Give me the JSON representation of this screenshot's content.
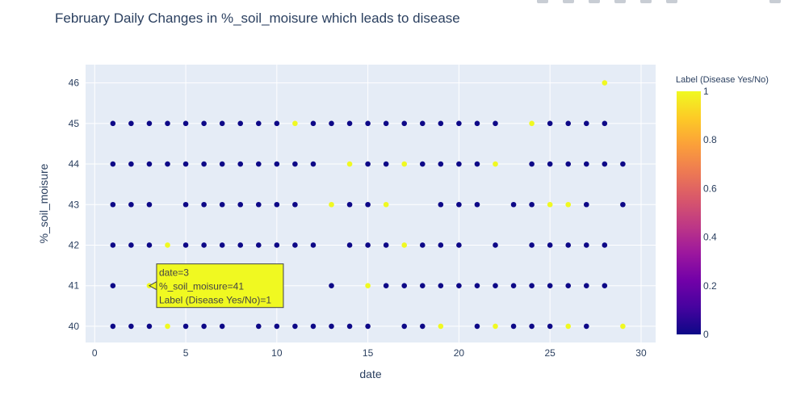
{
  "chart_data": {
    "type": "scatter",
    "title": "February Daily Changes in %_soil_moisure which leads to disease",
    "xlabel": "date",
    "ylabel": "%_soil_moisure",
    "xlim": [
      -0.5,
      30.8
    ],
    "ylim": [
      39.6,
      46.45
    ],
    "xticks": [
      0,
      5,
      10,
      15,
      20,
      25,
      30
    ],
    "yticks": [
      40,
      41,
      42,
      43,
      44,
      45,
      46
    ],
    "grid": true,
    "background": "#e5ecf6",
    "colorscale": [
      "#0d0887",
      "#46039f",
      "#7201a8",
      "#9c179e",
      "#bd3786",
      "#d8576b",
      "#ed7953",
      "#fb9f3a",
      "#fdca26",
      "#f0f921"
    ],
    "colorbar": {
      "title": "Label (Disease Yes/No)",
      "range": [
        0,
        1
      ],
      "ticks": [
        {
          "value": 0,
          "label": "0"
        },
        {
          "value": 0.2,
          "label": "0.2"
        },
        {
          "value": 0.4,
          "label": "0.4"
        },
        {
          "value": 0.6,
          "label": "0.6"
        },
        {
          "value": 0.8,
          "label": "0.8"
        },
        {
          "value": 1,
          "label": "1"
        }
      ]
    },
    "points": [
      [
        1,
        45,
        0
      ],
      [
        2,
        45,
        0
      ],
      [
        3,
        45,
        0
      ],
      [
        4,
        45,
        0
      ],
      [
        5,
        45,
        0
      ],
      [
        6,
        45,
        0
      ],
      [
        7,
        45,
        0
      ],
      [
        8,
        45,
        0
      ],
      [
        9,
        45,
        0
      ],
      [
        10,
        45,
        0
      ],
      [
        11,
        45,
        1
      ],
      [
        12,
        45,
        0
      ],
      [
        13,
        45,
        0
      ],
      [
        14,
        45,
        0
      ],
      [
        15,
        45,
        0
      ],
      [
        16,
        45,
        0
      ],
      [
        17,
        45,
        0
      ],
      [
        18,
        45,
        0
      ],
      [
        19,
        45,
        0
      ],
      [
        20,
        45,
        0
      ],
      [
        21,
        45,
        0
      ],
      [
        22,
        45,
        0
      ],
      [
        24,
        45,
        1
      ],
      [
        25,
        45,
        0
      ],
      [
        26,
        45,
        0
      ],
      [
        27,
        45,
        0
      ],
      [
        28,
        45,
        0
      ],
      [
        28,
        46,
        1
      ],
      [
        1,
        44,
        0
      ],
      [
        2,
        44,
        0
      ],
      [
        3,
        44,
        0
      ],
      [
        4,
        44,
        0
      ],
      [
        5,
        44,
        0
      ],
      [
        6,
        44,
        0
      ],
      [
        7,
        44,
        0
      ],
      [
        8,
        44,
        0
      ],
      [
        9,
        44,
        0
      ],
      [
        10,
        44,
        0
      ],
      [
        11,
        44,
        0
      ],
      [
        12,
        44,
        0
      ],
      [
        14,
        44,
        1
      ],
      [
        15,
        44,
        0
      ],
      [
        16,
        44,
        0
      ],
      [
        17,
        44,
        1
      ],
      [
        18,
        44,
        0
      ],
      [
        19,
        44,
        0
      ],
      [
        20,
        44,
        0
      ],
      [
        21,
        44,
        0
      ],
      [
        22,
        44,
        1
      ],
      [
        24,
        44,
        0
      ],
      [
        25,
        44,
        0
      ],
      [
        26,
        44,
        0
      ],
      [
        27,
        44,
        0
      ],
      [
        28,
        44,
        0
      ],
      [
        29,
        44,
        0
      ],
      [
        1,
        43,
        0
      ],
      [
        2,
        43,
        0
      ],
      [
        3,
        43,
        0
      ],
      [
        5,
        43,
        0
      ],
      [
        6,
        43,
        0
      ],
      [
        7,
        43,
        0
      ],
      [
        8,
        43,
        0
      ],
      [
        9,
        43,
        0
      ],
      [
        10,
        43,
        0
      ],
      [
        11,
        43,
        0
      ],
      [
        13,
        43,
        1
      ],
      [
        14,
        43,
        0
      ],
      [
        15,
        43,
        0
      ],
      [
        16,
        43,
        1
      ],
      [
        19,
        43,
        0
      ],
      [
        20,
        43,
        0
      ],
      [
        21,
        43,
        0
      ],
      [
        23,
        43,
        0
      ],
      [
        24,
        43,
        0
      ],
      [
        25,
        43,
        1
      ],
      [
        26,
        43,
        1
      ],
      [
        27,
        43,
        0
      ],
      [
        29,
        43,
        0
      ],
      [
        1,
        42,
        0
      ],
      [
        2,
        42,
        0
      ],
      [
        3,
        42,
        0
      ],
      [
        4,
        42,
        1
      ],
      [
        5,
        42,
        0
      ],
      [
        6,
        42,
        0
      ],
      [
        7,
        42,
        0
      ],
      [
        8,
        42,
        0
      ],
      [
        9,
        42,
        0
      ],
      [
        10,
        42,
        0
      ],
      [
        11,
        42,
        0
      ],
      [
        12,
        42,
        0
      ],
      [
        14,
        42,
        0
      ],
      [
        15,
        42,
        0
      ],
      [
        16,
        42,
        0
      ],
      [
        17,
        42,
        1
      ],
      [
        18,
        42,
        0
      ],
      [
        19,
        42,
        0
      ],
      [
        20,
        42,
        0
      ],
      [
        22,
        42,
        0
      ],
      [
        24,
        42,
        0
      ],
      [
        25,
        42,
        0
      ],
      [
        26,
        42,
        0
      ],
      [
        27,
        42,
        0
      ],
      [
        28,
        42,
        0
      ],
      [
        1,
        41,
        0
      ],
      [
        3,
        41,
        1
      ],
      [
        13,
        41,
        0
      ],
      [
        15,
        41,
        1
      ],
      [
        16,
        41,
        0
      ],
      [
        17,
        41,
        0
      ],
      [
        18,
        41,
        0
      ],
      [
        19,
        41,
        0
      ],
      [
        20,
        41,
        0
      ],
      [
        21,
        41,
        0
      ],
      [
        22,
        41,
        0
      ],
      [
        23,
        41,
        0
      ],
      [
        24,
        41,
        0
      ],
      [
        25,
        41,
        0
      ],
      [
        26,
        41,
        0
      ],
      [
        27,
        41,
        0
      ],
      [
        28,
        41,
        0
      ],
      [
        1,
        40,
        0
      ],
      [
        2,
        40,
        0
      ],
      [
        3,
        40,
        0
      ],
      [
        4,
        40,
        1
      ],
      [
        5,
        40,
        0
      ],
      [
        6,
        40,
        0
      ],
      [
        7,
        40,
        0
      ],
      [
        9,
        40,
        0
      ],
      [
        10,
        40,
        0
      ],
      [
        11,
        40,
        0
      ],
      [
        12,
        40,
        0
      ],
      [
        13,
        40,
        0
      ],
      [
        14,
        40,
        0
      ],
      [
        15,
        40,
        0
      ],
      [
        17,
        40,
        0
      ],
      [
        18,
        40,
        0
      ],
      [
        19,
        40,
        1
      ],
      [
        21,
        40,
        0
      ],
      [
        22,
        40,
        1
      ],
      [
        23,
        40,
        0
      ],
      [
        24,
        40,
        0
      ],
      [
        25,
        40,
        0
      ],
      [
        26,
        40,
        1
      ],
      [
        27,
        40,
        0
      ],
      [
        29,
        40,
        1
      ]
    ],
    "hover": {
      "point": [
        3,
        41,
        1
      ],
      "lines": [
        "date=3",
        "%_soil_moisure=41",
        "Label (Disease Yes/No)=1"
      ]
    }
  }
}
